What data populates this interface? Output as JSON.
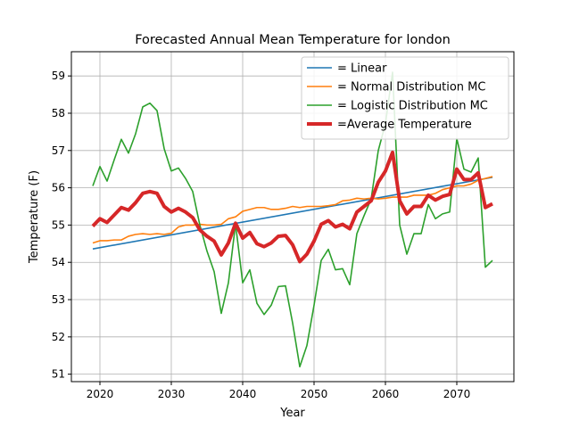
{
  "chart_data": {
    "type": "line",
    "title": "Forecasted Annual Mean Temperature for london",
    "xlabel": "Year",
    "ylabel": "Temperature (F)",
    "xlim": [
      2016,
      2078
    ],
    "ylim": [
      50.8,
      59.65
    ],
    "xticks": [
      2020,
      2030,
      2040,
      2050,
      2060,
      2070
    ],
    "yticks": [
      51,
      52,
      53,
      54,
      55,
      56,
      57,
      58,
      59
    ],
    "grid": true,
    "legend_position": "top-right",
    "series": [
      {
        "name": " = Linear",
        "color": "#1f77b4",
        "width": 1.6,
        "x": [
          2019,
          2075
        ],
        "y": [
          54.36,
          56.28
        ]
      },
      {
        "name": " = Normal Distribution MC",
        "color": "#ff7f0e",
        "width": 1.6,
        "x": [
          2019,
          2020,
          2021,
          2022,
          2023,
          2024,
          2025,
          2026,
          2027,
          2028,
          2029,
          2030,
          2031,
          2032,
          2033,
          2034,
          2035,
          2036,
          2037,
          2038,
          2039,
          2040,
          2041,
          2042,
          2043,
          2044,
          2045,
          2046,
          2047,
          2048,
          2049,
          2050,
          2051,
          2052,
          2053,
          2054,
          2055,
          2056,
          2057,
          2058,
          2059,
          2060,
          2061,
          2062,
          2063,
          2064,
          2065,
          2066,
          2067,
          2068,
          2069,
          2070,
          2071,
          2072,
          2073,
          2074,
          2075
        ],
        "y": [
          54.52,
          54.58,
          54.58,
          54.6,
          54.6,
          54.7,
          54.75,
          54.77,
          54.75,
          54.77,
          54.75,
          54.78,
          54.95,
          55.0,
          55.0,
          55.02,
          55.0,
          55.0,
          55.02,
          55.17,
          55.22,
          55.37,
          55.42,
          55.47,
          55.47,
          55.42,
          55.42,
          55.45,
          55.5,
          55.47,
          55.5,
          55.5,
          55.5,
          55.52,
          55.55,
          55.65,
          55.67,
          55.72,
          55.7,
          55.72,
          55.7,
          55.72,
          55.75,
          55.75,
          55.75,
          55.8,
          55.8,
          55.8,
          55.85,
          55.95,
          56.0,
          56.05,
          56.05,
          56.1,
          56.2,
          56.25,
          56.3
        ]
      },
      {
        "name": " = Logistic Distribution MC",
        "color": "#2ca02c",
        "width": 1.6,
        "x": [
          2019,
          2020,
          2021,
          2022,
          2023,
          2024,
          2025,
          2026,
          2027,
          2028,
          2029,
          2030,
          2031,
          2032,
          2033,
          2034,
          2035,
          2036,
          2037,
          2038,
          2039,
          2040,
          2041,
          2042,
          2043,
          2044,
          2045,
          2046,
          2047,
          2048,
          2049,
          2050,
          2051,
          2052,
          2053,
          2054,
          2055,
          2056,
          2057,
          2058,
          2059,
          2060,
          2061,
          2062,
          2063,
          2064,
          2065,
          2066,
          2067,
          2068,
          2069,
          2070,
          2071,
          2072,
          2073,
          2074,
          2075
        ],
        "y": [
          56.05,
          56.57,
          56.18,
          56.75,
          57.3,
          56.93,
          57.45,
          58.17,
          58.27,
          58.07,
          57.05,
          56.45,
          56.53,
          56.25,
          55.9,
          55.0,
          54.3,
          53.75,
          52.63,
          53.45,
          55.03,
          53.45,
          53.8,
          52.9,
          52.6,
          52.85,
          53.35,
          53.37,
          52.37,
          51.2,
          51.77,
          52.85,
          54.05,
          54.35,
          53.8,
          53.83,
          53.4,
          54.77,
          55.25,
          55.7,
          57.0,
          57.72,
          59.1,
          55.0,
          54.22,
          54.77,
          54.77,
          55.55,
          55.17,
          55.3,
          55.35,
          57.32,
          56.5,
          56.42,
          56.8,
          53.87,
          54.05
        ]
      },
      {
        "name": "=Average Temperature",
        "color": "#d62728",
        "width": 4,
        "x": [
          2019,
          2020,
          2021,
          2022,
          2023,
          2024,
          2025,
          2026,
          2027,
          2028,
          2029,
          2030,
          2031,
          2032,
          2033,
          2034,
          2035,
          2036,
          2037,
          2038,
          2039,
          2040,
          2041,
          2042,
          2043,
          2044,
          2045,
          2046,
          2047,
          2048,
          2049,
          2050,
          2051,
          2052,
          2053,
          2054,
          2055,
          2056,
          2057,
          2058,
          2059,
          2060,
          2061,
          2062,
          2063,
          2064,
          2065,
          2066,
          2067,
          2068,
          2069,
          2070,
          2071,
          2072,
          2073,
          2074,
          2075
        ],
        "y": [
          54.97,
          55.17,
          55.07,
          55.27,
          55.47,
          55.4,
          55.6,
          55.85,
          55.9,
          55.85,
          55.5,
          55.35,
          55.45,
          55.35,
          55.2,
          54.87,
          54.7,
          54.57,
          54.2,
          54.52,
          55.05,
          54.65,
          54.8,
          54.5,
          54.42,
          54.52,
          54.7,
          54.72,
          54.47,
          54.02,
          54.22,
          54.57,
          55.02,
          55.12,
          54.95,
          55.02,
          54.9,
          55.35,
          55.5,
          55.65,
          56.15,
          56.45,
          56.95,
          55.65,
          55.3,
          55.5,
          55.5,
          55.8,
          55.67,
          55.77,
          55.82,
          56.5,
          56.22,
          56.22,
          56.4,
          55.47,
          55.57
        ]
      }
    ]
  }
}
